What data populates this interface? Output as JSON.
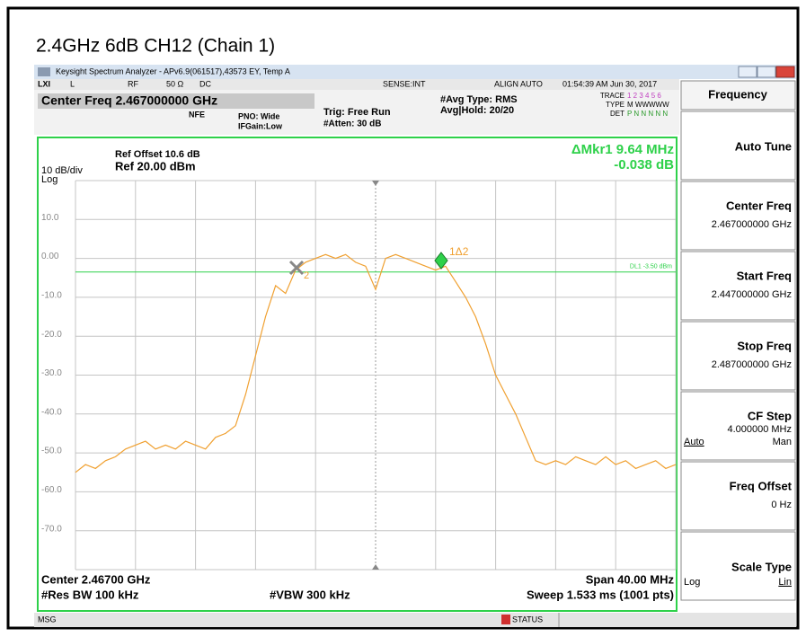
{
  "title": "2.4GHz 6dB CH12 (Chain 1)",
  "window_title": "Keysight Spectrum Analyzer - APv6.9(061517),43573 EY, Temp A",
  "status_bar": {
    "lxi": "LXI",
    "items": [
      "L",
      "RF",
      "50 Ω",
      "DC"
    ],
    "sense": "SENSE:INT",
    "align": "ALIGN AUTO",
    "datetime": "01:54:39 AM Jun 30, 2017"
  },
  "settings": {
    "center_freq": "Center Freq 2.467000000 GHz",
    "nfe": "NFE",
    "pno": "PNO: Wide",
    "ifgain": "IFGain:Low",
    "trig": "Trig: Free Run",
    "atten": "#Atten: 30 dB",
    "avg_type": "#Avg Type: RMS",
    "avg_hold": "Avg|Hold: 20/20",
    "trace_label": "TRACE",
    "trace_val": "1 2 3 4 5 6",
    "type_label": "TYPE",
    "type_val": "M WWWWW",
    "det_label": "DET",
    "det_val": "P N N N N N"
  },
  "display": {
    "ref_offset": "Ref Offset 10.6 dB",
    "ref": "Ref 20.00 dBm",
    "scale": "10 dB/div",
    "log": "Log",
    "marker_readout": "ΔMkr1 9.64 MHz",
    "marker_value": "-0.038 dB",
    "dl_label": "DL1 -3.50 dBm",
    "marker1_label": "1Δ2",
    "marker2_label": "2",
    "center": "Center 2.46700 GHz",
    "span": "Span 40.00 MHz",
    "rbw": "#Res BW 100 kHz",
    "vbw": "#VBW 300 kHz",
    "sweep": "Sweep  1.533 ms (1001 pts)"
  },
  "chart_data": {
    "type": "line",
    "color": "#f0a030",
    "grid": true,
    "ylim": [
      -80,
      20
    ],
    "yticks": [
      {
        "value": 10,
        "label": "10.0"
      },
      {
        "value": 0,
        "label": "0.00"
      },
      {
        "value": -10,
        "label": "-10.0"
      },
      {
        "value": -20,
        "label": "-20.0"
      },
      {
        "value": -30,
        "label": "-30.0"
      },
      {
        "value": -40,
        "label": "-40.0"
      },
      {
        "value": -50,
        "label": "-50.0"
      },
      {
        "value": -60,
        "label": "-60.0"
      },
      {
        "value": -70,
        "label": "-70.0"
      }
    ],
    "display_line": -3.5,
    "values": [
      -55,
      -53,
      -54,
      -52,
      -51,
      -49,
      -48,
      -47,
      -49,
      -48,
      -49,
      -47,
      -48,
      -49,
      -46,
      -45,
      -43,
      -35,
      -25,
      -15,
      -7,
      -9,
      -3,
      -1,
      0,
      1,
      0,
      1,
      -1,
      -2,
      -8,
      0,
      1,
      0,
      -1,
      -2,
      -3,
      -2,
      -6,
      -10,
      -15,
      -22,
      -30,
      -35,
      -40,
      -46,
      -52,
      -53,
      -52,
      -53,
      -51,
      -52,
      -53,
      -51,
      -53,
      -52,
      -54,
      -53,
      -52,
      -54,
      -53
    ]
  },
  "menu": {
    "title": "Frequency",
    "items": [
      {
        "label": "Auto Tune"
      },
      {
        "label": "Center Freq",
        "value": "2.467000000 GHz"
      },
      {
        "label": "Start Freq",
        "value": "2.447000000 GHz"
      },
      {
        "label": "Stop Freq",
        "value": "2.487000000 GHz"
      },
      {
        "label": "CF Step",
        "value": "4.000000 MHz",
        "left": "Auto",
        "right": "Man"
      },
      {
        "label": "Freq Offset",
        "value": "0 Hz"
      },
      {
        "label": "Scale Type",
        "left": "Log",
        "right": "Lin"
      }
    ]
  },
  "message_bar": {
    "msg": "MSG",
    "status": "STATUS"
  }
}
